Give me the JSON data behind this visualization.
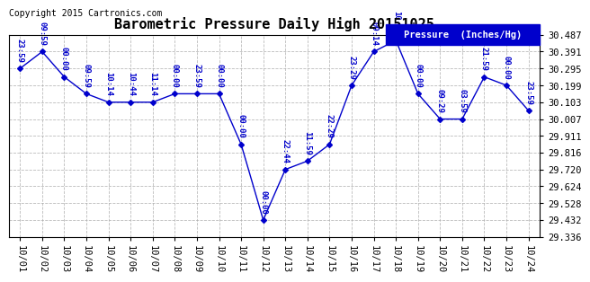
{
  "title": "Barometric Pressure Daily High 20151025",
  "ylabel": "Pressure  (Inches/Hg)",
  "copyright": "Copyright 2015 Cartronics.com",
  "line_color": "#0000CC",
  "marker_color": "#0000CC",
  "background_color": "#ffffff",
  "grid_color": "#aaaaaa",
  "ylim": [
    29.336,
    30.487
  ],
  "yticks": [
    29.336,
    29.432,
    29.528,
    29.624,
    29.72,
    29.816,
    29.911,
    30.007,
    30.103,
    30.199,
    30.295,
    30.391,
    30.487
  ],
  "x_labels": [
    "10/01",
    "10/02",
    "10/03",
    "10/04",
    "10/05",
    "10/06",
    "10/07",
    "10/08",
    "10/09",
    "10/10",
    "10/11",
    "10/12",
    "10/13",
    "10/14",
    "10/15",
    "10/16",
    "10/17",
    "10/18",
    "10/19",
    "10/20",
    "10/21",
    "10/22",
    "10/23",
    "10/24"
  ],
  "x_values": [
    0,
    1,
    2,
    3,
    4,
    5,
    6,
    7,
    8,
    9,
    10,
    11,
    12,
    13,
    14,
    15,
    16,
    17,
    18,
    19,
    20,
    21,
    22,
    23
  ],
  "y_values": [
    30.295,
    30.391,
    30.247,
    30.151,
    30.103,
    30.103,
    30.103,
    30.151,
    30.151,
    30.151,
    29.863,
    29.432,
    29.72,
    29.768,
    29.863,
    30.199,
    30.391,
    30.455,
    30.151,
    30.007,
    30.007,
    30.247,
    30.199,
    30.055
  ],
  "annotations": [
    {
      "idx": 0,
      "label": "23:59"
    },
    {
      "idx": 1,
      "label": "09:59"
    },
    {
      "idx": 2,
      "label": "00:00"
    },
    {
      "idx": 3,
      "label": "09:59"
    },
    {
      "idx": 4,
      "label": "10:14"
    },
    {
      "idx": 5,
      "label": "10:44"
    },
    {
      "idx": 6,
      "label": "11:14"
    },
    {
      "idx": 7,
      "label": "00:00"
    },
    {
      "idx": 8,
      "label": "23:59"
    },
    {
      "idx": 9,
      "label": "00:00"
    },
    {
      "idx": 10,
      "label": "00:00"
    },
    {
      "idx": 11,
      "label": "00:00"
    },
    {
      "idx": 12,
      "label": "22:44"
    },
    {
      "idx": 13,
      "label": "11:59"
    },
    {
      "idx": 14,
      "label": "22:29"
    },
    {
      "idx": 15,
      "label": "23:29"
    },
    {
      "idx": 16,
      "label": "09:14"
    },
    {
      "idx": 17,
      "label": "10:29"
    },
    {
      "idx": 18,
      "label": "00:00"
    },
    {
      "idx": 19,
      "label": "09:29"
    },
    {
      "idx": 20,
      "label": "03:59"
    },
    {
      "idx": 21,
      "label": "21:59"
    },
    {
      "idx": 22,
      "label": "00:00"
    },
    {
      "idx": 23,
      "label": "23:59"
    }
  ]
}
